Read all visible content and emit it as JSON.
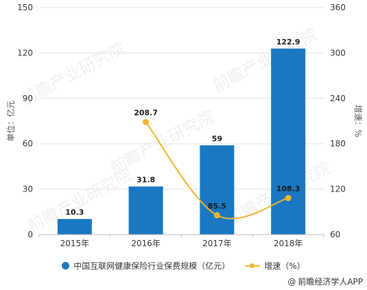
{
  "chart_data": {
    "type": "bar",
    "categories": [
      "2015年",
      "2016年",
      "2017年",
      "2018年"
    ],
    "series": [
      {
        "name": "中国互联网健康保险行业保费规模（亿元）",
        "type": "bar",
        "axis": "left",
        "values": [
          10.3,
          31.8,
          59,
          122.9
        ],
        "labels": [
          "10.3",
          "31.8",
          "59",
          "122.9"
        ]
      },
      {
        "name": "增速（%）",
        "type": "line",
        "axis": "right",
        "values": [
          null,
          208.7,
          85.5,
          108.3
        ],
        "labels": [
          "",
          "208.7",
          "85.5",
          "108.3"
        ]
      }
    ],
    "ylabel": "单位：亿元",
    "y2label": "增速：%",
    "ylim": [
      0,
      150
    ],
    "y2lim": [
      60,
      360
    ],
    "yticks": [
      0,
      30,
      60,
      90,
      120,
      150
    ],
    "y2ticks": [
      60,
      120,
      180,
      240,
      300,
      360
    ],
    "grid": true,
    "legend_position": "bottom"
  },
  "colors": {
    "bar": "#1a78c2",
    "line": "#f0b429"
  },
  "watermark_text": "前瞻产业研究院",
  "source": {
    "icon": "copyright-icon",
    "symbol": "@",
    "text": "前瞻经济学人APP"
  }
}
